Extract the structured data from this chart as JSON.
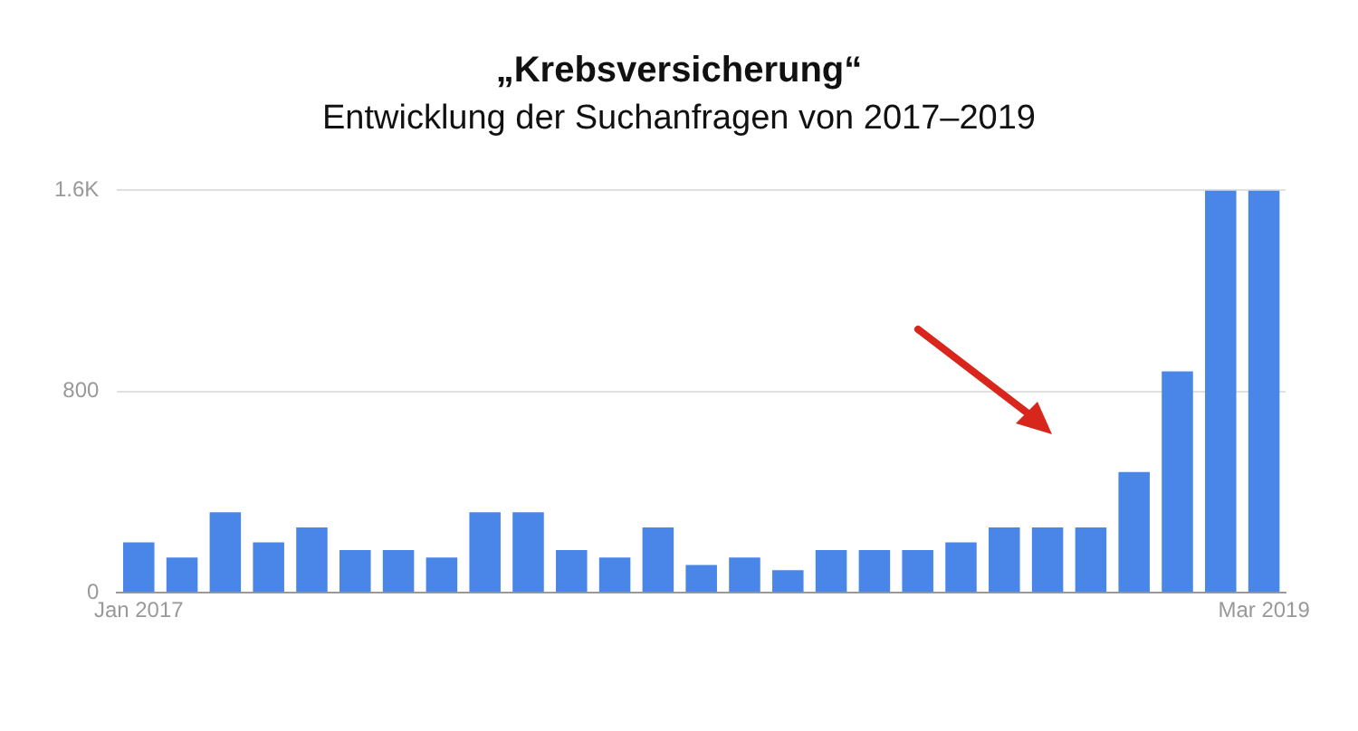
{
  "chart_data": {
    "type": "bar",
    "title": "„Krebsversicherung“",
    "subtitle": "Entwicklung der Suchanfragen von 2017–2019",
    "categories": [
      "Jan 2017",
      null,
      null,
      null,
      null,
      null,
      null,
      null,
      null,
      null,
      null,
      null,
      null,
      null,
      null,
      null,
      null,
      null,
      null,
      null,
      null,
      null,
      null,
      null,
      null,
      null,
      "Mar 2019"
    ],
    "values": [
      200,
      140,
      320,
      200,
      260,
      170,
      170,
      140,
      320,
      320,
      170,
      140,
      260,
      110,
      140,
      90,
      170,
      170,
      170,
      200,
      260,
      260,
      260,
      480,
      880,
      1600,
      1600
    ],
    "color": "#4a86e8",
    "ylim": [
      0,
      1600
    ],
    "yticks": [
      0,
      800,
      {
        "value": 1600,
        "label": "1.6K"
      }
    ],
    "grid": "y",
    "legend": false
  }
}
